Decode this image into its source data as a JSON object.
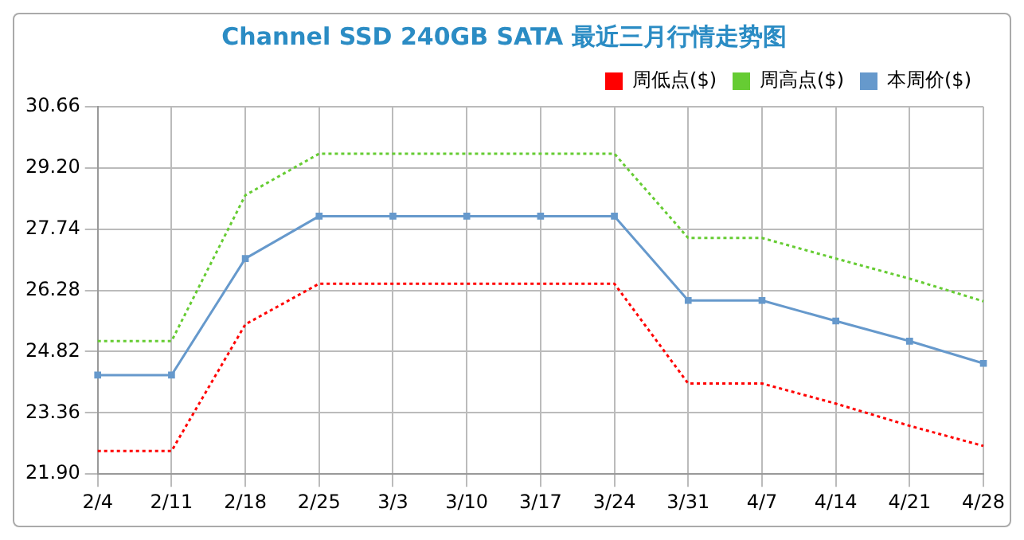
{
  "chart_data": {
    "type": "line",
    "title": "Channel SSD 240GB SATA 最近三月行情走势图",
    "categories": [
      "2/4",
      "2/11",
      "2/18",
      "2/25",
      "3/3",
      "3/10",
      "3/17",
      "3/24",
      "3/31",
      "4/7",
      "4/14",
      "4/21",
      "4/28"
    ],
    "series": [
      {
        "name": "周低点($)",
        "color": "#ff0000",
        "line_style": "dotted",
        "marker": "none",
        "values": [
          22.45,
          22.45,
          25.47,
          26.44,
          26.44,
          26.44,
          26.44,
          26.44,
          24.06,
          24.06,
          23.58,
          23.05,
          22.57
        ]
      },
      {
        "name": "周高点($)",
        "color": "#66cc33",
        "line_style": "dotted",
        "marker": "none",
        "values": [
          25.07,
          25.07,
          28.55,
          29.54,
          29.54,
          29.54,
          29.54,
          29.54,
          27.53,
          27.53,
          27.04,
          26.56,
          26.02
        ]
      },
      {
        "name": "本周价($)",
        "color": "#6699cc",
        "line_style": "solid",
        "marker": "square",
        "values": [
          24.26,
          24.26,
          27.04,
          28.05,
          28.05,
          28.05,
          28.05,
          28.05,
          26.04,
          26.04,
          25.55,
          25.07,
          24.54
        ]
      }
    ],
    "ylim": [
      21.9,
      30.66
    ],
    "yticks": [
      {
        "value": 21.9,
        "label": "21.90"
      },
      {
        "value": 23.36,
        "label": "23.36"
      },
      {
        "value": 24.82,
        "label": "24.82"
      },
      {
        "value": 26.28,
        "label": "26.28"
      },
      {
        "value": 27.74,
        "label": "27.74"
      },
      {
        "value": 29.2,
        "label": "29.20"
      },
      {
        "value": 30.66,
        "label": "30.66"
      }
    ],
    "grid": true,
    "legend": "top right"
  }
}
